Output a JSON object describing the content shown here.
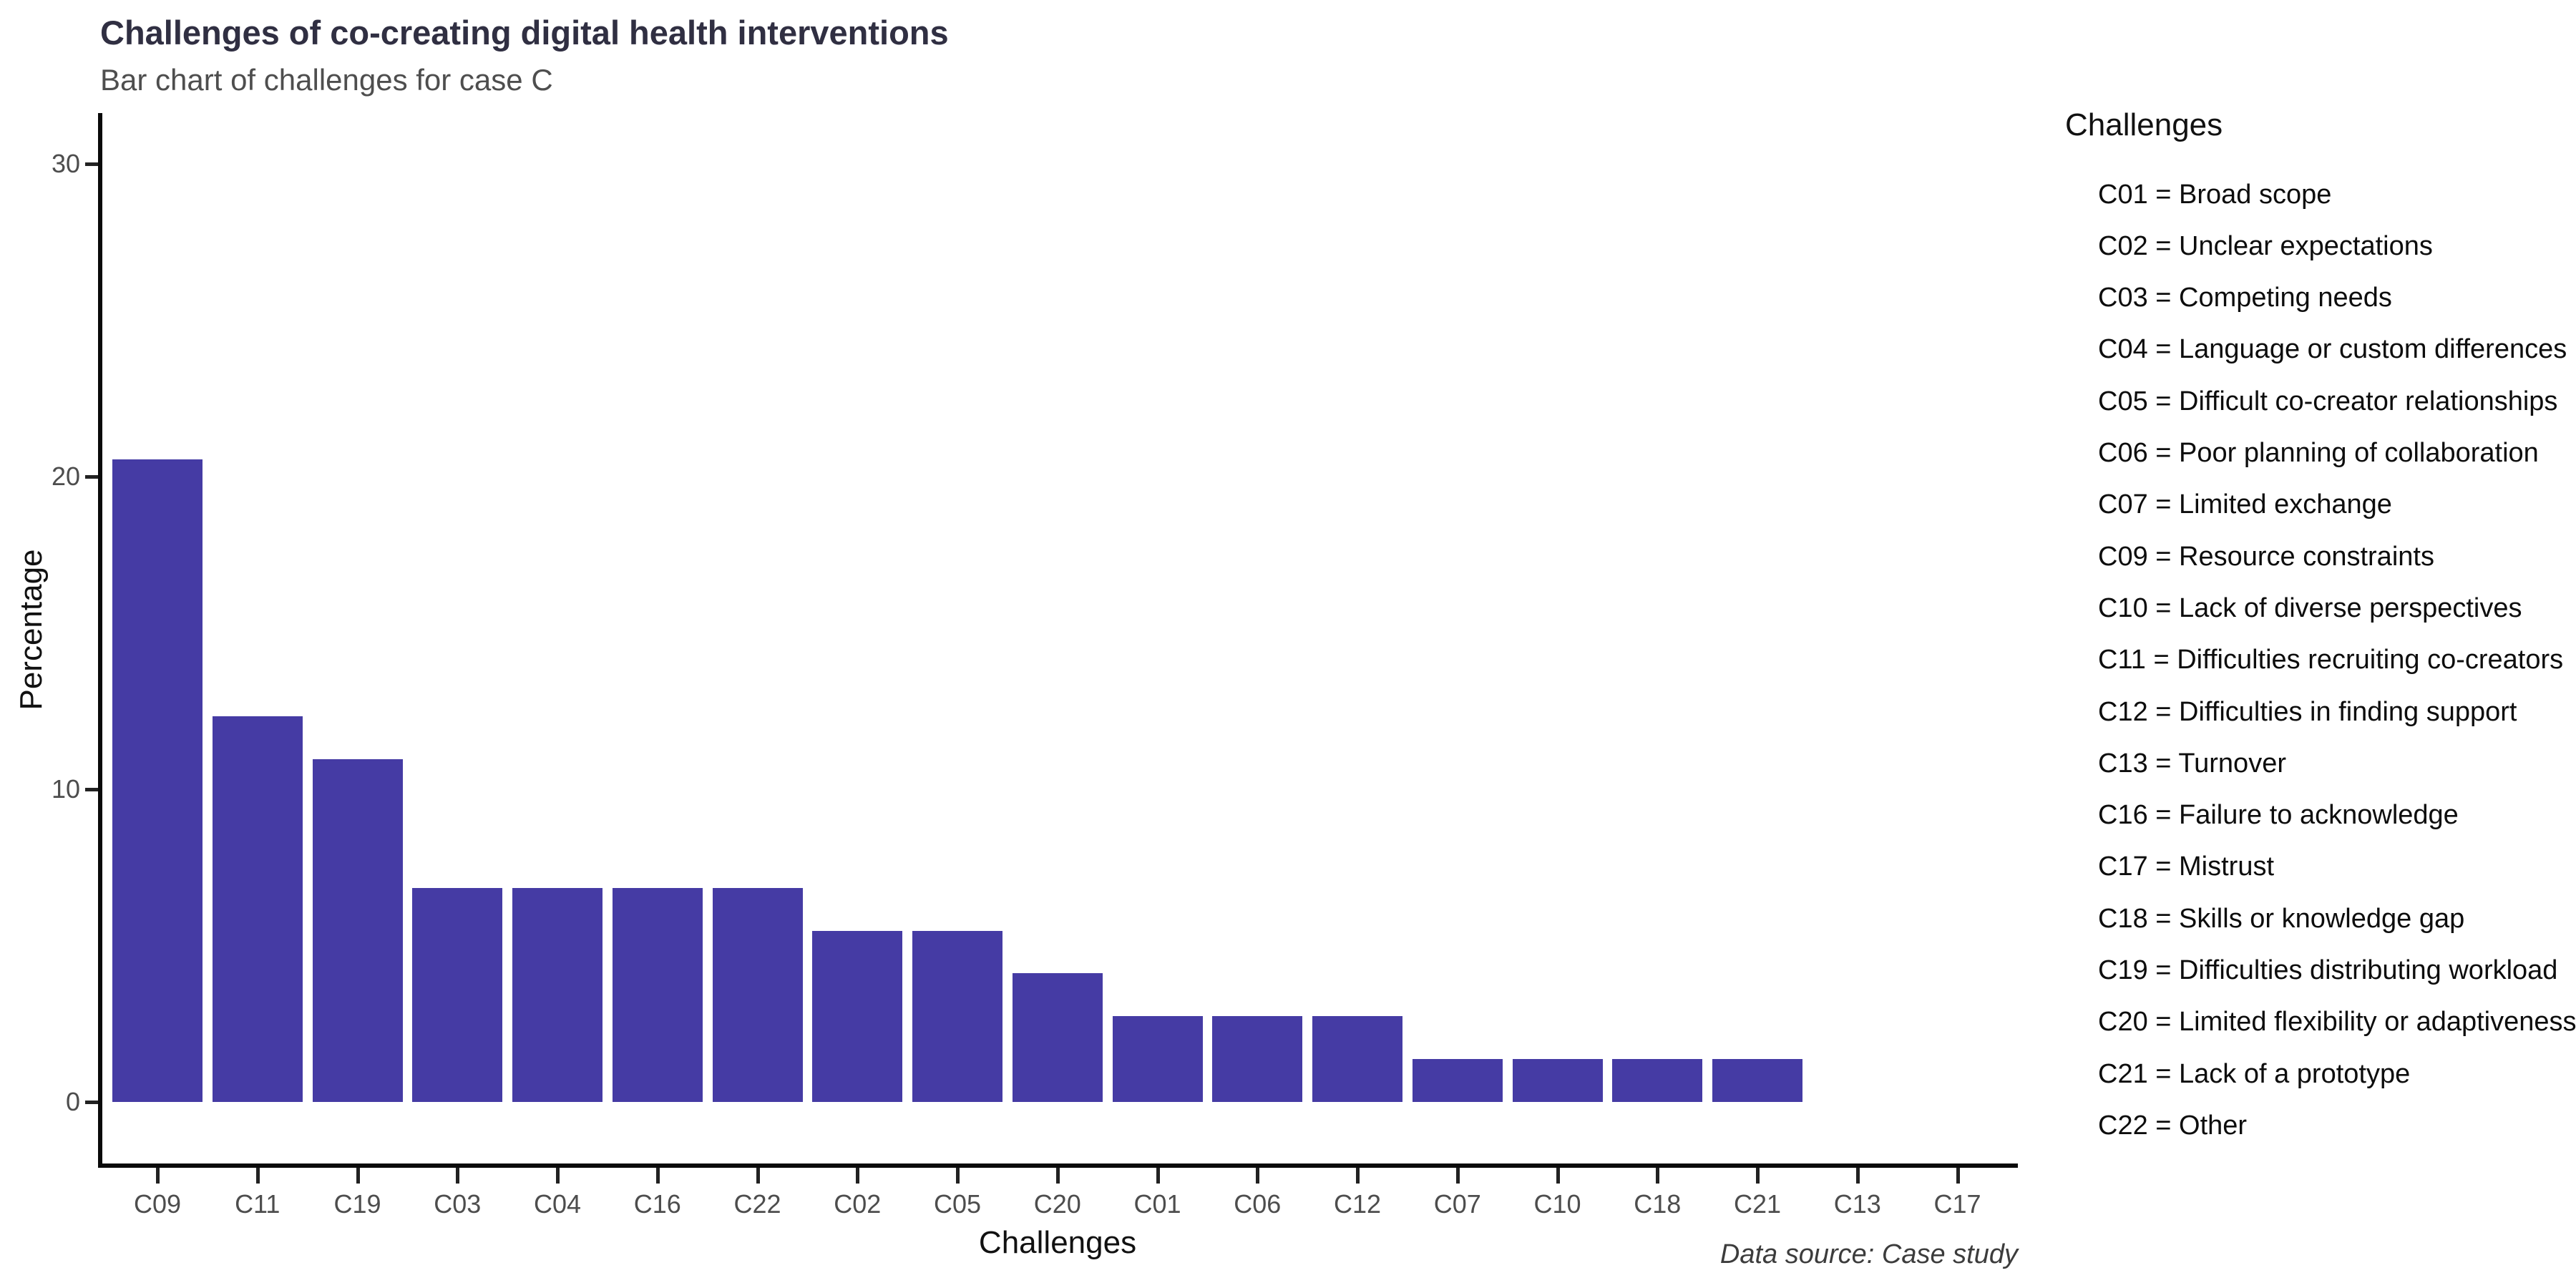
{
  "chart_data": {
    "type": "bar",
    "title": "Challenges of co-creating digital health interventions",
    "subtitle": "Bar chart of challenges for case C",
    "caption": "Data source: Case study",
    "xlabel": "Challenges",
    "ylabel": "Percentage",
    "categories": [
      "C09",
      "C11",
      "C19",
      "C03",
      "C04",
      "C16",
      "C22",
      "C02",
      "C05",
      "C20",
      "C01",
      "C06",
      "C12",
      "C07",
      "C10",
      "C18",
      "C21",
      "C13",
      "C17"
    ],
    "values": [
      20.55,
      12.33,
      10.96,
      6.85,
      6.85,
      6.85,
      6.85,
      5.48,
      5.48,
      4.11,
      2.74,
      2.74,
      2.74,
      1.37,
      1.37,
      1.37,
      1.37,
      0,
      0
    ],
    "yticks": [
      0,
      10,
      20,
      30
    ],
    "ylim": [
      0,
      31.8
    ],
    "grid": false,
    "bar_color": "#453BA4",
    "legend_position": "right",
    "legend": {
      "title": "Challenges",
      "entries": [
        {
          "code": "C01",
          "label": "Broad scope"
        },
        {
          "code": "C02",
          "label": "Unclear expectations"
        },
        {
          "code": "C03",
          "label": "Competing needs"
        },
        {
          "code": "C04",
          "label": "Language or custom differences"
        },
        {
          "code": "C05",
          "label": "Difficult co-creator relationships"
        },
        {
          "code": "C06",
          "label": "Poor planning of collaboration"
        },
        {
          "code": "C07",
          "label": "Limited exchange"
        },
        {
          "code": "C09",
          "label": "Resource constraints"
        },
        {
          "code": "C10",
          "label": "Lack of diverse perspectives"
        },
        {
          "code": "C11",
          "label": "Difficulties recruiting co-creators"
        },
        {
          "code": "C12",
          "label": "Difficulties in finding support"
        },
        {
          "code": "C13",
          "label": "Turnover"
        },
        {
          "code": "C16",
          "label": "Failure to acknowledge"
        },
        {
          "code": "C17",
          "label": "Mistrust"
        },
        {
          "code": "C18",
          "label": "Skills or knowledge gap"
        },
        {
          "code": "C19",
          "label": "Difficulties distributing workload"
        },
        {
          "code": "C20",
          "label": "Limited flexibility or adaptiveness"
        },
        {
          "code": "C21",
          "label": "Lack of a prototype"
        },
        {
          "code": "C22",
          "label": "Other"
        }
      ]
    }
  },
  "colors": {
    "bar": "#453BA4",
    "title": "#302f42",
    "subtitle": "#4e4e4e",
    "tick_label": "#4d4d4d",
    "axis_line": "#0a0a0a",
    "background": "#ffffff"
  }
}
